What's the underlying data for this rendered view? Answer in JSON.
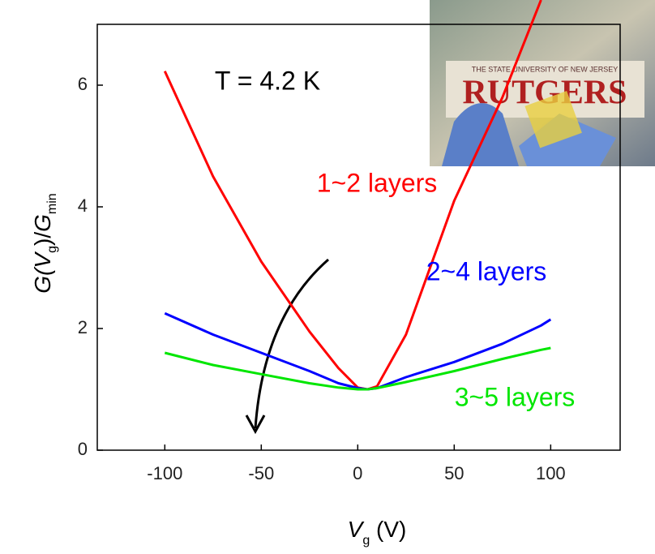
{
  "chart_data": {
    "type": "line",
    "annotation": "T = 4.2 K",
    "xlabel_parts": [
      "V",
      "g",
      " (V)"
    ],
    "ylabel_parts": [
      "G(",
      "V",
      "g",
      ")/",
      "G",
      "min"
    ],
    "x": [
      -100,
      -75,
      -50,
      -25,
      -10,
      0,
      5,
      10,
      25,
      50,
      75,
      95,
      100
    ],
    "series": [
      {
        "name": "1~2 layers",
        "color": "#ff0000",
        "values": [
          6.23,
          4.5,
          3.1,
          1.95,
          1.35,
          1.03,
          1.0,
          1.05,
          1.9,
          4.1,
          5.8,
          7.4,
          null
        ]
      },
      {
        "name": "2~4 layers",
        "color": "#0000ff",
        "values": [
          2.25,
          1.9,
          1.6,
          1.3,
          1.1,
          1.02,
          1.0,
          1.02,
          1.2,
          1.45,
          1.75,
          2.05,
          2.15
        ]
      },
      {
        "name": "3~5 layers",
        "color": "#00e600",
        "values": [
          1.6,
          1.4,
          1.25,
          1.1,
          1.03,
          1.0,
          1.0,
          1.02,
          1.12,
          1.3,
          1.5,
          1.65,
          1.68
        ]
      }
    ],
    "xlim": [
      -135,
      136
    ],
    "ylim": [
      0,
      7
    ],
    "xticks": [
      -100,
      -50,
      0,
      50,
      100
    ],
    "yticks": [
      0,
      2,
      4,
      6
    ],
    "inset": {
      "texts": [
        "THE STATE UNIVERSITY OF NEW JERSEY",
        "RUTGERS"
      ]
    }
  }
}
